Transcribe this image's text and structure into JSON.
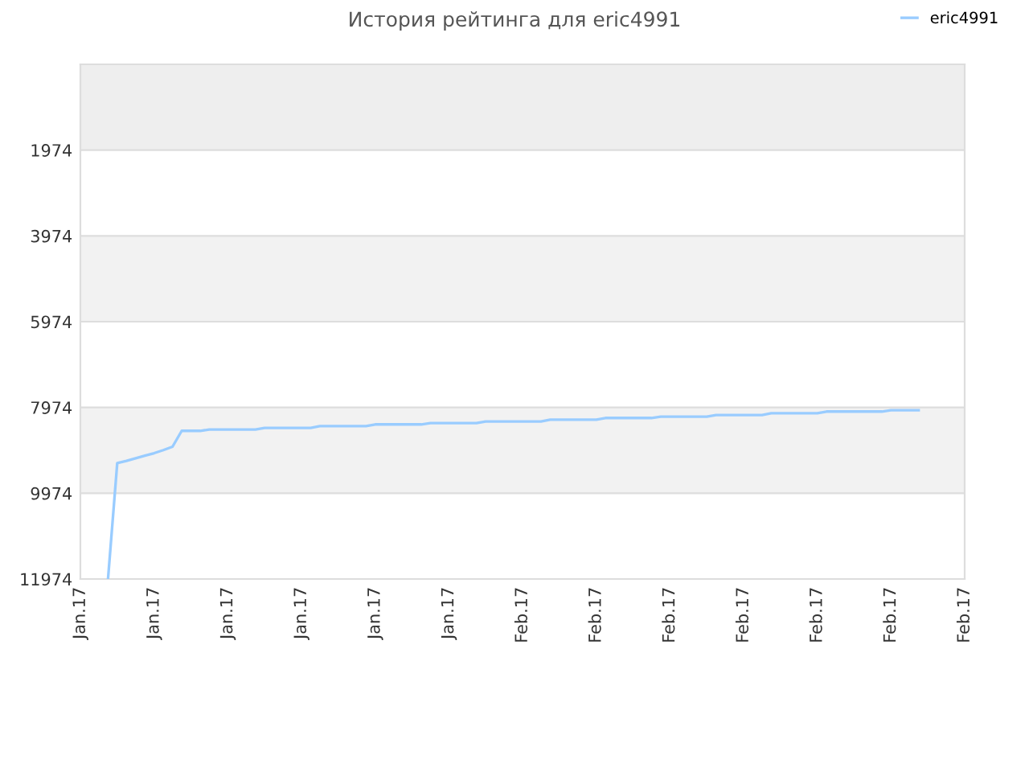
{
  "chart_data": {
    "type": "line",
    "title": "История рейтинга для eric4991",
    "categories": [
      "Jan.17",
      null,
      null,
      null,
      null,
      null,
      null,
      null,
      "Jan.17",
      null,
      null,
      null,
      null,
      null,
      null,
      null,
      "Jan.17",
      null,
      null,
      null,
      null,
      null,
      null,
      null,
      "Jan.17",
      null,
      null,
      null,
      null,
      null,
      null,
      null,
      "Jan.17",
      null,
      null,
      null,
      null,
      null,
      null,
      null,
      "Jan.17",
      null,
      null,
      null,
      null,
      null,
      null,
      null,
      "Feb.17",
      null,
      null,
      null,
      null,
      null,
      null,
      null,
      "Feb.17",
      null,
      null,
      null,
      null,
      null,
      null,
      null,
      "Feb.17",
      null,
      null,
      null,
      null,
      null,
      null,
      null,
      "Feb.17",
      null,
      null,
      null,
      null,
      null,
      null,
      null,
      "Feb.17",
      null,
      null,
      null,
      null,
      null,
      null,
      null,
      "Feb.17",
      null,
      null,
      null,
      null,
      null,
      null,
      null,
      "Feb.17"
    ],
    "series": [
      {
        "name": "eric4991",
        "color": "#99ccff",
        "values": [
          null,
          null,
          null,
          11970,
          9270,
          9220,
          9160,
          9100,
          9040,
          8970,
          8890,
          8520,
          8520,
          8520,
          8490,
          8490,
          8490,
          8490,
          8490,
          8490,
          8450,
          8450,
          8450,
          8450,
          8450,
          8450,
          8410,
          8410,
          8410,
          8410,
          8410,
          8410,
          8370,
          8370,
          8370,
          8370,
          8370,
          8370,
          8340,
          8340,
          8340,
          8340,
          8340,
          8340,
          8300,
          8300,
          8300,
          8300,
          8300,
          8300,
          8300,
          8260,
          8260,
          8260,
          8260,
          8260,
          8260,
          8220,
          8220,
          8220,
          8220,
          8220,
          8220,
          8190,
          8190,
          8190,
          8190,
          8190,
          8190,
          8150,
          8150,
          8150,
          8150,
          8150,
          8150,
          8110,
          8110,
          8110,
          8110,
          8110,
          8110,
          8070,
          8070,
          8070,
          8070,
          8070,
          8070,
          8070,
          8040,
          8040,
          8040,
          8040,
          null,
          null,
          null,
          null,
          null
        ]
      }
    ],
    "ylim": [
      11974,
      -26
    ],
    "yticks": [
      1974,
      3974,
      5974,
      7974,
      9974,
      11974
    ],
    "bands": [
      {
        "axis": "y",
        "from": -26,
        "to": 1974,
        "color": "#eeeeee"
      },
      {
        "axis": "y",
        "from": 3974,
        "to": 5974,
        "color": "#f2f2f2"
      },
      {
        "axis": "y",
        "from": 7974,
        "to": 9974,
        "color": "#f2f2f2"
      }
    ],
    "grid": "y",
    "legend": "top right",
    "marker": "none",
    "line_style": "solid"
  }
}
